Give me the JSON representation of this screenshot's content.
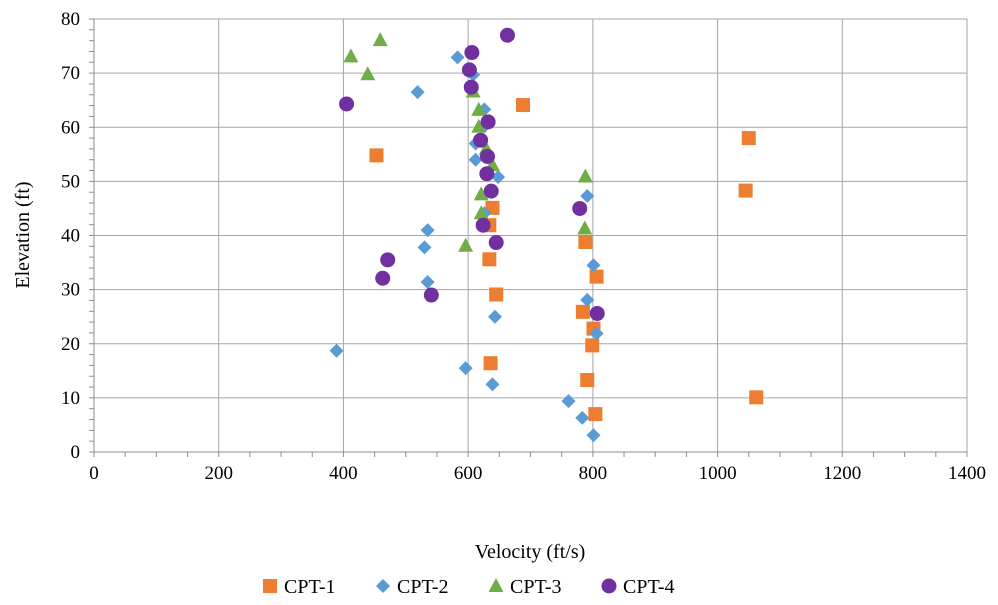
{
  "chart_data": {
    "type": "scatter",
    "xlabel": "Velocity (ft/s)",
    "ylabel": "Elevation (ft)",
    "xlim": [
      0,
      1400
    ],
    "ylim": [
      0,
      80
    ],
    "x_ticks": [
      0,
      200,
      400,
      600,
      800,
      1000,
      1200,
      1400
    ],
    "y_ticks": [
      0,
      10,
      20,
      30,
      40,
      50,
      60,
      70,
      80
    ],
    "grid": true,
    "legend_position": "bottom",
    "series": [
      {
        "name": "CPT-1",
        "marker": "square",
        "color": "#ED7D31",
        "points": [
          [
            1062,
            10.1
          ],
          [
            804,
            7.0
          ],
          [
            791,
            13.3
          ],
          [
            636,
            16.4
          ],
          [
            799,
            19.7
          ],
          [
            801,
            22.8
          ],
          [
            784,
            25.9
          ],
          [
            645,
            29.1
          ],
          [
            806,
            32.4
          ],
          [
            634,
            35.6
          ],
          [
            788,
            38.8
          ],
          [
            634,
            41.9
          ],
          [
            639,
            45.1
          ],
          [
            1045,
            48.3
          ],
          [
            453,
            54.8
          ],
          [
            1050,
            58.0
          ],
          [
            688,
            64.1
          ]
        ]
      },
      {
        "name": "CPT-2",
        "marker": "diamond",
        "color": "#5B9BD5",
        "points": [
          [
            801,
            3.1
          ],
          [
            783,
            6.3
          ],
          [
            761,
            9.4
          ],
          [
            639,
            12.5
          ],
          [
            596,
            15.5
          ],
          [
            389,
            18.7
          ],
          [
            806,
            21.9
          ],
          [
            643,
            25.0
          ],
          [
            791,
            28.1
          ],
          [
            535,
            31.4
          ],
          [
            801,
            34.5
          ],
          [
            530,
            37.8
          ],
          [
            535,
            41.0
          ],
          [
            626,
            44.1
          ],
          [
            791,
            47.3
          ],
          [
            648,
            50.8
          ],
          [
            612,
            54.0
          ],
          [
            612,
            57.0
          ],
          [
            626,
            60.2
          ],
          [
            626,
            63.3
          ],
          [
            519,
            66.5
          ],
          [
            608,
            69.7
          ],
          [
            583,
            72.9
          ]
        ]
      },
      {
        "name": "CPT-3",
        "marker": "triangle",
        "color": "#70AD47",
        "points": [
          [
            787,
            41.3
          ],
          [
            596,
            38.1
          ],
          [
            621,
            44.1
          ],
          [
            621,
            47.6
          ],
          [
            788,
            50.9
          ],
          [
            639,
            53.0
          ],
          [
            629,
            56.0
          ],
          [
            617,
            60.1
          ],
          [
            617,
            63.2
          ],
          [
            608,
            66.6
          ],
          [
            439,
            69.8
          ],
          [
            412,
            73.1
          ],
          [
            459,
            76.1
          ]
        ]
      },
      {
        "name": "CPT-4",
        "marker": "circle",
        "color": "#7030A0",
        "points": [
          [
            663,
            77.0
          ],
          [
            606,
            73.8
          ],
          [
            602,
            70.6
          ],
          [
            605,
            67.4
          ],
          [
            405,
            64.3
          ],
          [
            632,
            61.0
          ],
          [
            620,
            57.6
          ],
          [
            631,
            54.6
          ],
          [
            630,
            51.4
          ],
          [
            637,
            48.2
          ],
          [
            779,
            45.0
          ],
          [
            624,
            41.9
          ],
          [
            645,
            38.7
          ],
          [
            471,
            35.5
          ],
          [
            463,
            32.1
          ],
          [
            541,
            29.0
          ],
          [
            807,
            25.6
          ]
        ]
      }
    ]
  }
}
